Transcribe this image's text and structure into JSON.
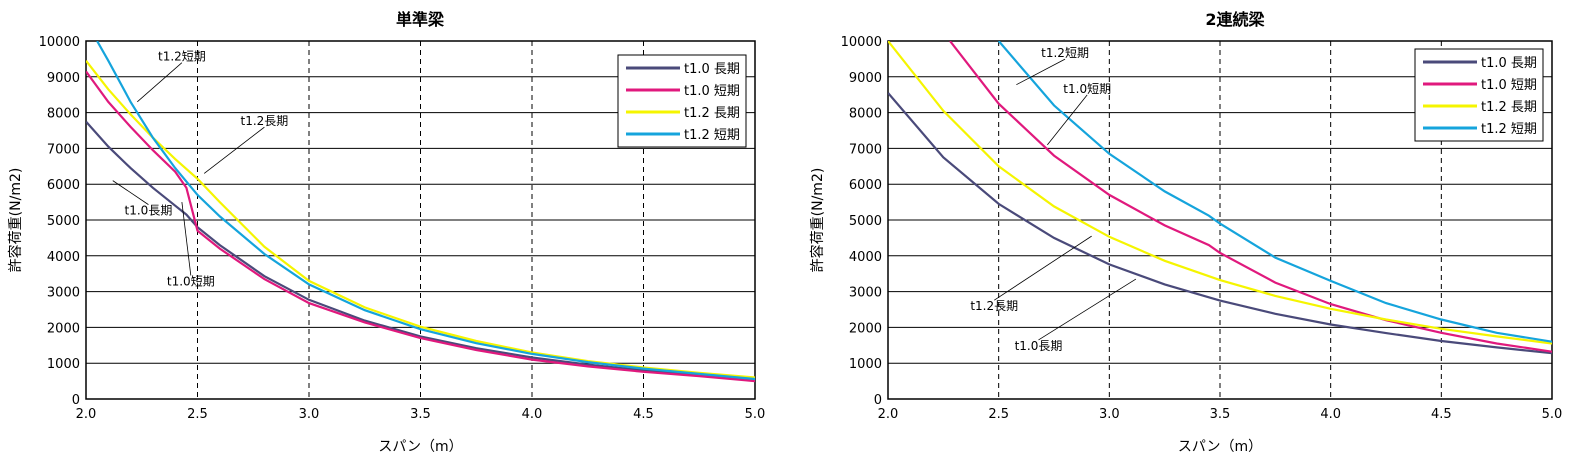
{
  "chart_data": [
    {
      "type": "line",
      "title": "単準梁",
      "xlabel": "スパン（m）",
      "ylabel": "許容荷重(N/m2)",
      "xlim": [
        2.0,
        5.0
      ],
      "ylim": [
        0,
        10000
      ],
      "x_ticks": [
        "2.0",
        "2.5",
        "3.0",
        "3.5",
        "4.0",
        "4.5",
        "5.0"
      ],
      "y_ticks": [
        "0",
        "1000",
        "2000",
        "3000",
        "4000",
        "5000",
        "6000",
        "7000",
        "8000",
        "9000",
        "10000"
      ],
      "grid": "horizontal solid, vertical dashed",
      "legend_position": "top-right",
      "series": [
        {
          "name": "t1.0 長期",
          "color": "#4a4a7a",
          "x": [
            2.0,
            2.1,
            2.2,
            2.3,
            2.4,
            2.45,
            2.5,
            2.6,
            2.8,
            3.0,
            3.25,
            3.5,
            3.75,
            4.0,
            4.25,
            4.5,
            4.75,
            5.0
          ],
          "y": [
            7750,
            7050,
            6450,
            5900,
            5400,
            5150,
            4800,
            4300,
            3430,
            2770,
            2190,
            1750,
            1420,
            1160,
            960,
            800,
            680,
            560
          ]
        },
        {
          "name": "t1.0 短期",
          "color": "#e0197d",
          "x": [
            2.0,
            2.1,
            2.2,
            2.3,
            2.4,
            2.45,
            2.5,
            2.6,
            2.8,
            3.0,
            3.25,
            3.5,
            3.75,
            4.0,
            4.25,
            4.5,
            4.75,
            5.0
          ],
          "y": [
            9150,
            8300,
            7600,
            6950,
            6350,
            5900,
            4700,
            4200,
            3350,
            2680,
            2140,
            1700,
            1370,
            1100,
            910,
            760,
            640,
            500
          ]
        },
        {
          "name": "t1.2 長期",
          "color": "#f5f500",
          "x": [
            2.0,
            2.1,
            2.2,
            2.3,
            2.4,
            2.5,
            2.6,
            2.8,
            3.0,
            3.25,
            3.5,
            3.75,
            4.0,
            4.25,
            4.5,
            4.75,
            5.0
          ],
          "y": [
            9450,
            8650,
            7950,
            7300,
            6700,
            6150,
            5500,
            4250,
            3300,
            2560,
            2020,
            1620,
            1300,
            1060,
            880,
            730,
            600
          ]
        },
        {
          "name": "t1.2 短期",
          "color": "#15a4dc",
          "x": [
            2.05,
            2.1,
            2.2,
            2.3,
            2.4,
            2.5,
            2.6,
            2.8,
            3.0,
            3.25,
            3.5,
            3.75,
            4.0,
            4.25,
            4.5,
            4.75,
            5.0
          ],
          "y": [
            10000,
            9450,
            8300,
            7300,
            6450,
            5700,
            5100,
            4050,
            3200,
            2480,
            1950,
            1560,
            1260,
            1030,
            850,
            700,
            560
          ]
        }
      ],
      "annotations": [
        {
          "text": "t1.2短期",
          "x": 2.43,
          "y": 9450,
          "ax": 2.23,
          "ay": 8300
        },
        {
          "text": "t1.2長期",
          "x": 2.8,
          "y": 7650,
          "ax": 2.53,
          "ay": 6300
        },
        {
          "text": "t1.0長期",
          "x": 2.28,
          "y": 5150,
          "ax": 2.12,
          "ay": 6100
        },
        {
          "text": "t1.0短期",
          "x": 2.47,
          "y": 3170,
          "ax": 2.43,
          "ay": 5500
        }
      ]
    },
    {
      "type": "line",
      "title": "2連続梁",
      "xlabel": "スパン（m）",
      "ylabel": "許容荷重(N/m2)",
      "xlim": [
        2.0,
        5.0
      ],
      "ylim": [
        0,
        10000
      ],
      "x_ticks": [
        "2.0",
        "2.5",
        "3.0",
        "3.5",
        "4.0",
        "4.5",
        "5.0"
      ],
      "y_ticks": [
        "0",
        "1000",
        "2000",
        "3000",
        "4000",
        "5000",
        "6000",
        "7000",
        "8000",
        "9000",
        "10000"
      ],
      "grid": "horizontal solid, vertical dashed",
      "legend_position": "top-right",
      "series": [
        {
          "name": "t1.0 長期",
          "color": "#4a4a7a",
          "x": [
            2.0,
            2.25,
            2.5,
            2.75,
            3.0,
            3.25,
            3.5,
            3.75,
            4.0,
            4.25,
            4.5,
            4.75,
            5.0
          ],
          "y": [
            8550,
            6750,
            5450,
            4500,
            3760,
            3200,
            2750,
            2380,
            2080,
            1840,
            1620,
            1440,
            1280
          ]
        },
        {
          "name": "t1.0 短期",
          "color": "#e0197d",
          "x": [
            2.28,
            2.5,
            2.75,
            3.0,
            3.25,
            3.45,
            3.5,
            3.75,
            4.0,
            4.25,
            4.5,
            4.75,
            5.0
          ],
          "y": [
            10000,
            8250,
            6800,
            5700,
            4850,
            4300,
            4080,
            3250,
            2650,
            2200,
            1850,
            1550,
            1320
          ]
        },
        {
          "name": "t1.2 長期",
          "color": "#f5f500",
          "x": [
            2.0,
            2.25,
            2.5,
            2.75,
            3.0,
            3.25,
            3.5,
            3.75,
            4.0,
            4.25,
            4.5,
            4.75,
            5.0
          ],
          "y": [
            10000,
            8050,
            6500,
            5380,
            4530,
            3860,
            3320,
            2880,
            2520,
            2220,
            1960,
            1750,
            1550
          ]
        },
        {
          "name": "t1.2 短期",
          "color": "#15a4dc",
          "x": [
            2.5,
            2.75,
            3.0,
            3.25,
            3.45,
            3.5,
            3.75,
            4.0,
            4.25,
            4.5,
            4.75,
            5.0
          ],
          "y": [
            10000,
            8200,
            6850,
            5800,
            5120,
            4900,
            3950,
            3300,
            2680,
            2220,
            1850,
            1600
          ]
        }
      ],
      "annotations": [
        {
          "text": "t1.2短期",
          "x": 2.8,
          "y": 9550,
          "ax": 2.58,
          "ay": 8780
        },
        {
          "text": "t1.0短期",
          "x": 2.9,
          "y": 8550,
          "ax": 2.72,
          "ay": 7100
        },
        {
          "text": "t1.2長期",
          "x": 2.48,
          "y": 2480,
          "ax": 2.92,
          "ay": 4550
        },
        {
          "text": "t1.0長期",
          "x": 2.68,
          "y": 1370,
          "ax": 3.12,
          "ay": 3350
        }
      ]
    }
  ]
}
